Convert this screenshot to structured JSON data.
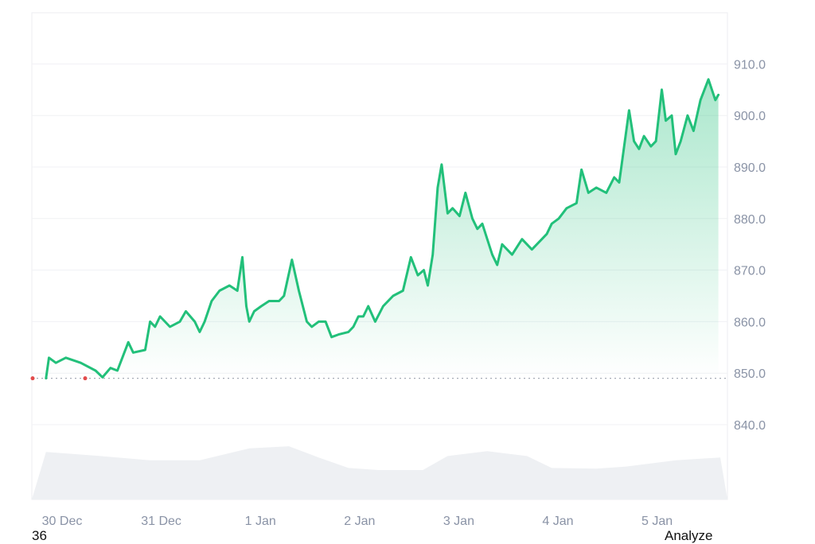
{
  "chart_data": {
    "type": "area",
    "x_ticks": [
      "30 Dec",
      "31 Dec",
      "1 Jan",
      "2 Jan",
      "3 Jan",
      "4 Jan",
      "5 Jan"
    ],
    "y_ticks": [
      "840.0",
      "850.0",
      "860.0",
      "870.0",
      "880.0",
      "890.0",
      "900.0",
      "910.0"
    ],
    "ylim": [
      830,
      915
    ],
    "grid": true,
    "baseline": 849,
    "line_color": "#22c07a",
    "volume_color": "#eef0f3",
    "series": [
      {
        "values": [
          [
            -0.05,
            849
          ],
          [
            -0.02,
            853
          ],
          [
            0.05,
            852
          ],
          [
            0.15,
            853
          ],
          [
            0.3,
            852
          ],
          [
            0.45,
            850.5
          ],
          [
            0.52,
            849.2
          ],
          [
            0.6,
            851
          ],
          [
            0.67,
            850.5
          ],
          [
            0.72,
            853
          ],
          [
            0.78,
            856
          ],
          [
            0.83,
            854
          ],
          [
            0.95,
            854.5
          ],
          [
            1.0,
            860
          ],
          [
            1.05,
            859
          ],
          [
            1.1,
            861
          ],
          [
            1.2,
            859
          ],
          [
            1.3,
            860
          ],
          [
            1.36,
            862
          ],
          [
            1.45,
            860
          ],
          [
            1.5,
            858
          ],
          [
            1.55,
            860
          ],
          [
            1.62,
            864
          ],
          [
            1.7,
            866
          ],
          [
            1.8,
            867
          ],
          [
            1.88,
            866
          ],
          [
            1.93,
            872.5
          ],
          [
            1.97,
            863
          ],
          [
            2.0,
            860
          ],
          [
            2.05,
            862
          ],
          [
            2.12,
            863
          ],
          [
            2.2,
            864
          ],
          [
            2.3,
            864
          ],
          [
            2.35,
            865
          ],
          [
            2.43,
            872
          ],
          [
            2.5,
            866
          ],
          [
            2.58,
            860
          ],
          [
            2.63,
            859
          ],
          [
            2.7,
            860
          ],
          [
            2.77,
            860
          ],
          [
            2.83,
            857
          ],
          [
            2.9,
            857.5
          ],
          [
            3.0,
            858
          ],
          [
            3.05,
            859
          ],
          [
            3.1,
            861
          ],
          [
            3.15,
            861
          ],
          [
            3.2,
            863
          ],
          [
            3.27,
            860
          ],
          [
            3.35,
            863
          ],
          [
            3.45,
            865
          ],
          [
            3.55,
            866
          ],
          [
            3.63,
            872.5
          ],
          [
            3.7,
            869
          ],
          [
            3.76,
            870
          ],
          [
            3.8,
            867
          ],
          [
            3.85,
            873
          ],
          [
            3.9,
            886
          ],
          [
            3.94,
            890.5
          ],
          [
            4.0,
            881
          ],
          [
            4.05,
            882
          ],
          [
            4.12,
            880.5
          ],
          [
            4.18,
            885
          ],
          [
            4.25,
            880
          ],
          [
            4.3,
            878
          ],
          [
            4.35,
            879
          ],
          [
            4.4,
            876
          ],
          [
            4.45,
            873
          ],
          [
            4.5,
            871
          ],
          [
            4.55,
            875
          ],
          [
            4.65,
            873
          ],
          [
            4.75,
            876
          ],
          [
            4.85,
            874
          ],
          [
            4.95,
            876
          ],
          [
            5.0,
            877
          ],
          [
            5.05,
            879
          ],
          [
            5.12,
            880
          ],
          [
            5.2,
            882
          ],
          [
            5.3,
            883
          ],
          [
            5.35,
            889.5
          ],
          [
            5.42,
            885
          ],
          [
            5.5,
            886
          ],
          [
            5.6,
            885
          ],
          [
            5.68,
            888
          ],
          [
            5.73,
            887
          ],
          [
            5.78,
            894
          ],
          [
            5.83,
            901
          ],
          [
            5.88,
            895
          ],
          [
            5.93,
            893.5
          ],
          [
            5.98,
            896
          ],
          [
            6.05,
            894
          ],
          [
            6.1,
            895
          ],
          [
            6.16,
            905
          ],
          [
            6.2,
            899
          ],
          [
            6.26,
            900
          ],
          [
            6.3,
            892.5
          ],
          [
            6.35,
            895
          ],
          [
            6.42,
            900
          ],
          [
            6.48,
            897
          ],
          [
            6.55,
            903
          ],
          [
            6.63,
            907
          ],
          [
            6.7,
            903
          ],
          [
            6.73,
            904
          ]
        ]
      }
    ],
    "volume_profile": [
      [
        -0.05,
        0.68
      ],
      [
        0.5,
        0.62
      ],
      [
        1.0,
        0.56
      ],
      [
        1.5,
        0.56
      ],
      [
        2.0,
        0.73
      ],
      [
        2.4,
        0.76
      ],
      [
        2.7,
        0.6
      ],
      [
        3.0,
        0.45
      ],
      [
        3.3,
        0.42
      ],
      [
        3.75,
        0.42
      ],
      [
        4.0,
        0.62
      ],
      [
        4.4,
        0.69
      ],
      [
        4.8,
        0.62
      ],
      [
        5.05,
        0.45
      ],
      [
        5.5,
        0.44
      ],
      [
        5.8,
        0.47
      ],
      [
        6.3,
        0.56
      ],
      [
        6.75,
        0.6
      ]
    ]
  },
  "footer": {
    "left_text": "36",
    "right_text": "Analyze"
  }
}
